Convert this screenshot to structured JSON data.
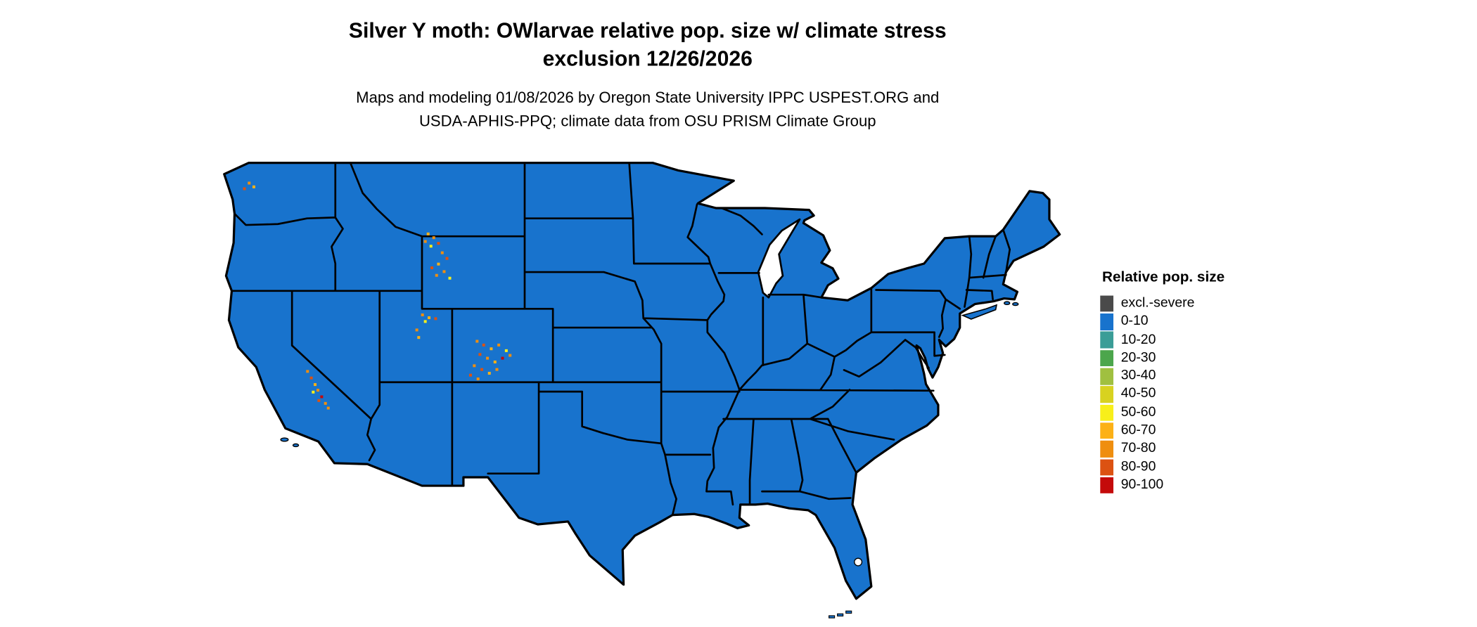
{
  "title": {
    "line1": "Silver Y moth: OWlarvae relative pop. size w/ climate stress",
    "line2": "exclusion 12/26/2026"
  },
  "subtitle": {
    "line1": "Maps and modeling 01/08/2026 by Oregon State University IPPC USPEST.ORG and",
    "line2": "USDA-APHIS-PPQ; climate data from OSU PRISM Climate Group"
  },
  "legend": {
    "title": "Relative pop. size",
    "items": [
      {
        "label": "excl.-severe",
        "color": "#4a4a4a"
      },
      {
        "label": "0-10",
        "color": "#1873cd"
      },
      {
        "label": "10-20",
        "color": "#3a9d97"
      },
      {
        "label": "20-30",
        "color": "#4ca64c"
      },
      {
        "label": "30-40",
        "color": "#a0c040"
      },
      {
        "label": "40-50",
        "color": "#d8d220"
      },
      {
        "label": "50-60",
        "color": "#f8ef1a"
      },
      {
        "label": "60-70",
        "color": "#fcb116"
      },
      {
        "label": "70-80",
        "color": "#ef8e0f"
      },
      {
        "label": "80-90",
        "color": "#dc5212"
      },
      {
        "label": "90-100",
        "color": "#c40a0a"
      }
    ]
  },
  "map": {
    "region": "contiguous United States with state boundaries",
    "land_color": "#1873cd",
    "water_color": "#ffffff",
    "border_color": "#000000",
    "hotspots": [
      [
        263,
        193,
        "#ef8e0f"
      ],
      [
        268,
        197,
        "#fcb116"
      ],
      [
        258,
        199,
        "#dc5212"
      ],
      [
        453,
        247,
        "#fcb116"
      ],
      [
        459,
        251,
        "#ef8e0f"
      ],
      [
        464,
        257,
        "#dc5212"
      ],
      [
        456,
        260,
        "#f8ef1a"
      ],
      [
        450,
        255,
        "#ef8e0f"
      ],
      [
        468,
        267,
        "#ef8e0f"
      ],
      [
        473,
        273,
        "#dc5212"
      ],
      [
        464,
        279,
        "#fcb116"
      ],
      [
        470,
        287,
        "#ef8e0f"
      ],
      [
        476,
        294,
        "#f8ef1a"
      ],
      [
        462,
        291,
        "#ef8e0f"
      ],
      [
        457,
        283,
        "#dc5212"
      ],
      [
        447,
        333,
        "#ef8e0f"
      ],
      [
        454,
        336,
        "#fcb116"
      ],
      [
        461,
        337,
        "#dc5212"
      ],
      [
        450,
        340,
        "#f8ef1a"
      ],
      [
        441,
        349,
        "#ef8e0f"
      ],
      [
        443,
        357,
        "#fcb116"
      ],
      [
        505,
        361,
        "#ef8e0f"
      ],
      [
        512,
        365,
        "#dc5212"
      ],
      [
        520,
        369,
        "#fcb116"
      ],
      [
        528,
        365,
        "#ef8e0f"
      ],
      [
        536,
        371,
        "#f8ef1a"
      ],
      [
        508,
        375,
        "#dc5212"
      ],
      [
        516,
        379,
        "#ef8e0f"
      ],
      [
        524,
        383,
        "#fcb116"
      ],
      [
        532,
        379,
        "#c40a0a"
      ],
      [
        502,
        387,
        "#ef8e0f"
      ],
      [
        510,
        391,
        "#dc5212"
      ],
      [
        518,
        395,
        "#fcb116"
      ],
      [
        526,
        391,
        "#ef8e0f"
      ],
      [
        498,
        397,
        "#dc5212"
      ],
      [
        506,
        401,
        "#ef8e0f"
      ],
      [
        540,
        376,
        "#ef8e0f"
      ],
      [
        325,
        393,
        "#ef8e0f"
      ],
      [
        329,
        400,
        "#dc5212"
      ],
      [
        333,
        407,
        "#fcb116"
      ],
      [
        336,
        413,
        "#ef8e0f"
      ],
      [
        340,
        420,
        "#c40a0a"
      ],
      [
        344,
        427,
        "#ef8e0f"
      ],
      [
        331,
        415,
        "#f8ef1a"
      ],
      [
        337,
        424,
        "#dc5212"
      ],
      [
        347,
        432,
        "#ef8e0f"
      ]
    ]
  }
}
